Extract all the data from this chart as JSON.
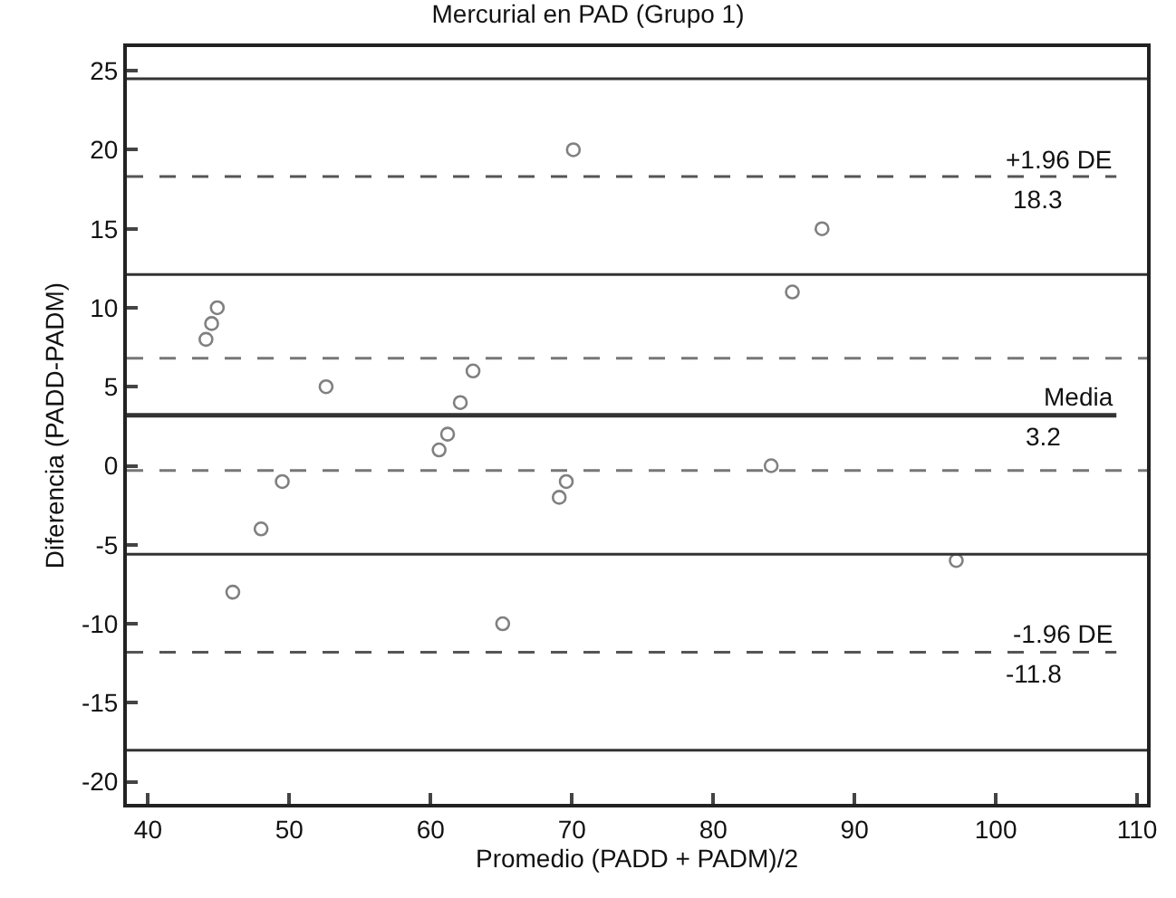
{
  "chart_data": {
    "type": "scatter",
    "title": "Mercurial en PAD (Grupo 1)",
    "xlabel": "Promedio (PADD + PADM)/2",
    "ylabel": "Diferencia (PADD-PADM)",
    "x": [
      44.1,
      44.5,
      44.9,
      52.6,
      60.6,
      61.2,
      62.1,
      63.0,
      70.1,
      49.5,
      48.0,
      46.0,
      65.1,
      69.1,
      69.6,
      87.7,
      85.6,
      84.1,
      97.2
    ],
    "series": [
      {
        "color": "#808080",
        "values": [
          8,
          9,
          10,
          5,
          1,
          2,
          4,
          6,
          20,
          -1,
          -4,
          -8,
          -10,
          -2,
          -1,
          15,
          11,
          0,
          -6
        ]
      }
    ],
    "marker": "circle",
    "grid": false,
    "xlim": [
      38.5,
      110.7
    ],
    "xticks": [
      40,
      50,
      60,
      70,
      80,
      90,
      100,
      110
    ],
    "ylim": [
      -21.4,
      26.5
    ],
    "yticks": [
      -20,
      -15,
      -10,
      -5,
      0,
      5,
      10,
      15,
      20,
      25
    ],
    "ref_lines": [
      {
        "axis": "y",
        "value": 18.3,
        "label": "+1.96 DE",
        "line_style": "dashed",
        "color": "#555555"
      },
      {
        "axis": "y",
        "value": 3.2,
        "label": "Media",
        "line_style": "solid",
        "color": "#333333"
      },
      {
        "axis": "y",
        "value": -11.8,
        "label": "-1.96 DE",
        "line_style": "dashed",
        "color": "#555555"
      },
      {
        "axis": "y",
        "value": 24.5,
        "line_style": "solid",
        "color": "#333333"
      },
      {
        "axis": "y",
        "value": 12.1,
        "line_style": "solid",
        "color": "#333333"
      },
      {
        "axis": "y",
        "value": -5.6,
        "line_style": "solid",
        "color": "#333333"
      },
      {
        "axis": "y",
        "value": -18.0,
        "line_style": "solid",
        "color": "#333333"
      },
      {
        "axis": "y",
        "value": 6.8,
        "line_style": "dashed",
        "color": "#777777"
      },
      {
        "axis": "y",
        "value": -0.3,
        "line_style": "dashed",
        "color": "#777777"
      }
    ],
    "annotations": [
      "18.3",
      "3.2",
      "-11.8"
    ]
  }
}
